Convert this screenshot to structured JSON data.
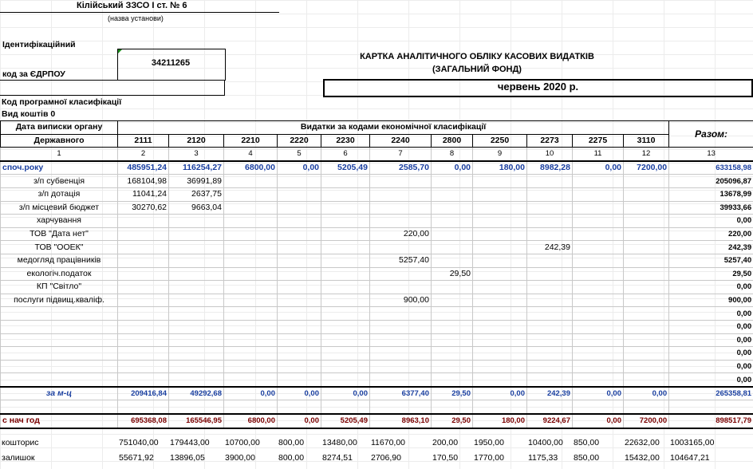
{
  "header": {
    "institution": "Кілійський ЗЗСО І ст. № 6",
    "institution_caption": "(назва установи)",
    "ident_label": "Ідентифікаційний",
    "edrpou_label": "код за ЄДРПОУ",
    "edrpou_value": "34211265",
    "card_title_1": "КАРТКА  АНАЛІТИЧНОГО  ОБЛІКУ  КАСОВИХ  ВИДАТКІВ",
    "card_title_2": "(ЗАГАЛЬНИЙ ФОНД)",
    "period": "червень 2020 р.",
    "program_label": "Код програмної класифікації",
    "funds_label": "Вид коштів   0"
  },
  "table": {
    "col_header_left_1": "Дата виписки органу",
    "col_header_left_2": "Державного",
    "col_header_group": "Видатки за кодами економічної класифікації",
    "col_header_total": "Разом:",
    "codes": [
      "2111",
      "2120",
      "2210",
      "2220",
      "2230",
      "2240",
      "2800",
      "2250",
      "2273",
      "2275",
      "3110"
    ],
    "col_numbers": [
      "1",
      "2",
      "3",
      "4",
      "5",
      "6",
      "7",
      "8",
      "9",
      "10",
      "11",
      "12",
      "13"
    ],
    "rows": [
      {
        "label": "споч.року",
        "cells": [
          "485951,24",
          "116254,27",
          "6800,00",
          "0,00",
          "5205,49",
          "2585,70",
          "0,00",
          "180,00",
          "8982,28",
          "0,00",
          "7200,00"
        ],
        "total": "633158,98",
        "style": "blue"
      },
      {
        "label": "з/п субвенція",
        "cells": [
          "168104,98",
          "36991,89",
          "",
          "",
          "",
          "",
          "",
          "",
          "",
          "",
          ""
        ],
        "total": "205096,87",
        "style": ""
      },
      {
        "label": "з/п дотація",
        "cells": [
          "11041,24",
          "2637,75",
          "",
          "",
          "",
          "",
          "",
          "",
          "",
          "",
          ""
        ],
        "total": "13678,99",
        "style": ""
      },
      {
        "label": "з/п місцевий бюджет",
        "cells": [
          "30270,62",
          "9663,04",
          "",
          "",
          "",
          "",
          "",
          "",
          "",
          "",
          ""
        ],
        "total": "39933,66",
        "style": ""
      },
      {
        "label": "харчування",
        "cells": [
          "",
          "",
          "",
          "",
          "",
          "",
          "",
          "",
          "",
          "",
          ""
        ],
        "total": "0,00",
        "style": ""
      },
      {
        "label": "ТОВ \"Дата нет\"",
        "cells": [
          "",
          "",
          "",
          "",
          "",
          "220,00",
          "",
          "",
          "",
          "",
          ""
        ],
        "total": "220,00",
        "style": ""
      },
      {
        "label": "ТОВ \"ООЕК\"",
        "cells": [
          "",
          "",
          "",
          "",
          "",
          "",
          "",
          "",
          "242,39",
          "",
          ""
        ],
        "total": "242,39",
        "style": ""
      },
      {
        "label": "медогляд працівників",
        "cells": [
          "",
          "",
          "",
          "",
          "",
          "5257,40",
          "",
          "",
          "",
          "",
          ""
        ],
        "total": "5257,40",
        "style": ""
      },
      {
        "label": "екологіч.податок",
        "cells": [
          "",
          "",
          "",
          "",
          "",
          "",
          "29,50",
          "",
          "",
          "",
          ""
        ],
        "total": "29,50",
        "style": ""
      },
      {
        "label": "КП \"Світло\"",
        "cells": [
          "",
          "",
          "",
          "",
          "",
          "",
          "",
          "",
          "",
          "",
          ""
        ],
        "total": "0,00",
        "style": ""
      },
      {
        "label": "послуги підвищ.кваліф.",
        "cells": [
          "",
          "",
          "",
          "",
          "",
          "900,00",
          "",
          "",
          "",
          "",
          ""
        ],
        "total": "900,00",
        "style": ""
      },
      {
        "label": "",
        "cells": [
          "",
          "",
          "",
          "",
          "",
          "",
          "",
          "",
          "",
          "",
          ""
        ],
        "total": "0,00",
        "style": ""
      },
      {
        "label": "",
        "cells": [
          "",
          "",
          "",
          "",
          "",
          "",
          "",
          "",
          "",
          "",
          ""
        ],
        "total": "0,00",
        "style": ""
      },
      {
        "label": "",
        "cells": [
          "",
          "",
          "",
          "",
          "",
          "",
          "",
          "",
          "",
          "",
          ""
        ],
        "total": "0,00",
        "style": ""
      },
      {
        "label": "",
        "cells": [
          "",
          "",
          "",
          "",
          "",
          "",
          "",
          "",
          "",
          "",
          ""
        ],
        "total": "0,00",
        "style": ""
      },
      {
        "label": "",
        "cells": [
          "",
          "",
          "",
          "",
          "",
          "",
          "",
          "",
          "",
          "",
          ""
        ],
        "total": "0,00",
        "style": ""
      },
      {
        "label": "",
        "cells": [
          "",
          "",
          "",
          "",
          "",
          "",
          "",
          "",
          "",
          "",
          ""
        ],
        "total": "0,00",
        "style": ""
      }
    ],
    "month_row": {
      "label": "за м-ц",
      "cells": [
        "209416,84",
        "49292,68",
        "0,00",
        "0,00",
        "0,00",
        "6377,40",
        "29,50",
        "0,00",
        "242,39",
        "0,00",
        "0,00"
      ],
      "total": "265358,81"
    },
    "ytd_row": {
      "label": "с нач год",
      "cells": [
        "695368,08",
        "165546,95",
        "6800,00",
        "0,00",
        "5205,49",
        "8963,10",
        "29,50",
        "180,00",
        "9224,67",
        "0,00",
        "7200,00"
      ],
      "total": "898517,79"
    }
  },
  "footer": {
    "rows": [
      {
        "label": "кошторис",
        "cells": [
          "751040,00",
          "179443,00",
          "10700,00",
          "800,00",
          "13480,00",
          "11670,00",
          "200,00",
          "1950,00",
          "10400,00",
          "850,00",
          "22632,00"
        ],
        "total": "1003165,00"
      },
      {
        "label": "залишок",
        "cells": [
          "55671,92",
          "13896,05",
          "3900,00",
          "800,00",
          "8274,51",
          "2706,90",
          "170,50",
          "1770,00",
          "1175,33",
          "850,00",
          "15432,00"
        ],
        "total": "104647,21"
      }
    ]
  },
  "colors": {
    "blue_text": "#1a3fa0",
    "dark_red_text": "#7a0000",
    "grid": "#c8c8c8"
  }
}
